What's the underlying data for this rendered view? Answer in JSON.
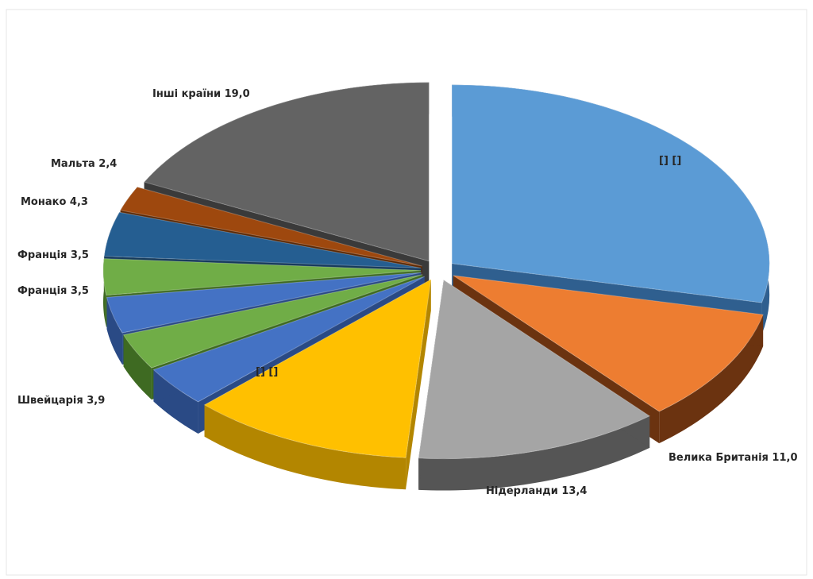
{
  "chart_data": {
    "type": "pie",
    "three_d": true,
    "exploded": true,
    "title": "",
    "slices": [
      {
        "label": "[] []",
        "value": 30.6,
        "color": "#5b9bd5",
        "side": "#2f5f8f"
      },
      {
        "label": "Велика Британія 11,0",
        "value": 11.0,
        "color": "#ed7d31",
        "side": "#6b3310"
      },
      {
        "label": "Нідерланди 13,4",
        "value": 13.4,
        "color": "#a5a5a5",
        "side": "#555555"
      },
      {
        "label": "[] []",
        "value": 12.2,
        "color": "#ffc000",
        "side": "#b38600"
      },
      {
        "label": "Швейцарія 3,9",
        "value": 3.9,
        "color": "#4472c4",
        "side": "#2a4a85"
      },
      {
        "label": "Франція 3,5",
        "value": 3.5,
        "color": "#70ad47",
        "side": "#3e6a22"
      },
      {
        "label": "Франція 3,5",
        "value": 3.5,
        "color": "#4472c4",
        "side": "#2a4a85"
      },
      {
        "label": "Франція 3,5",
        "value": 3.5,
        "color": "#70ad47",
        "side": "#3e6a22"
      },
      {
        "label": "Монако 4,3",
        "value": 4.3,
        "color": "#255e91",
        "side": "#163a5c"
      },
      {
        "label": "Мальта 2,4",
        "value": 2.4,
        "color": "#9e480e",
        "side": "#5c2905"
      },
      {
        "label": "Інші країни 19,0",
        "value": 19.0,
        "color": "#636363",
        "side": "#3a3a3a"
      }
    ]
  }
}
